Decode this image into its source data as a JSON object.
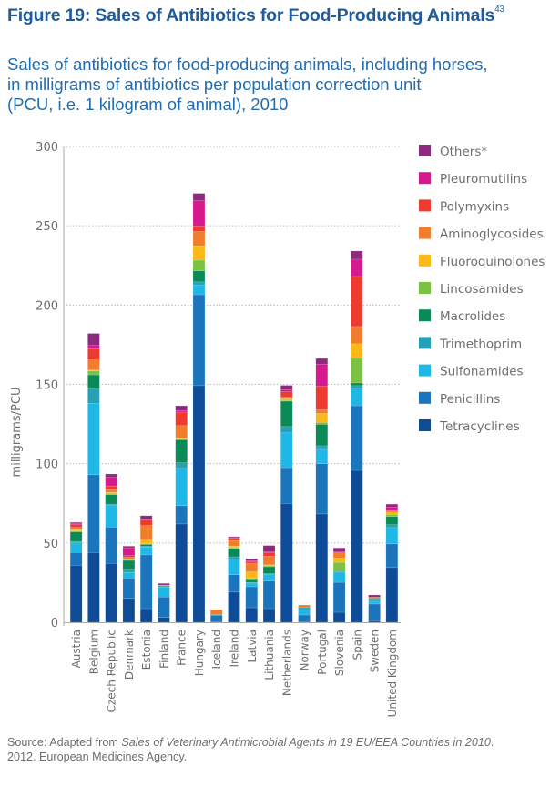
{
  "figure": {
    "title": "Figure 19: Sales of Antibiotics for Food-Producing Animals",
    "title_superscript": "43",
    "subtitle_lines": [
      "Sales of antibiotics for food-producing animals, including horses,",
      "in milligrams of antibiotics per population correction unit",
      "(PCU, i.e. 1 kilogram of animal), 2010"
    ],
    "source_prefix": "Source: Adapted from ",
    "source_italic": "Sales of Veterinary Antimicrobial Agents in 19 EU/EEA Countries in 2010",
    "source_suffix": ".",
    "source_line2": "2012. European Medicines Agency."
  },
  "chart_data": {
    "type": "bar",
    "stacked": true,
    "title": "Sales of antibiotics for food-producing animals, including horses, in milligrams of antibiotics per population correction unit (PCU, i.e. 1 kilogram of animal), 2010",
    "xlabel": "",
    "ylabel": "milligrams/PCU",
    "ylim": [
      0,
      300
    ],
    "yticks": [
      0,
      50,
      100,
      150,
      200,
      250,
      300
    ],
    "grid": "horizontal-dotted",
    "legend_position": "right",
    "categories": [
      "Austria",
      "Belgium",
      "Czech Republic",
      "Denmark",
      "Estonia",
      "Finland",
      "France",
      "Hungary",
      "Iceland",
      "Ireland",
      "Latvia",
      "Lithuania",
      "Netherlands",
      "Norway",
      "Portugal",
      "Slovenia",
      "Spain",
      "Sweden",
      "United Kingdom"
    ],
    "series": [
      {
        "name": "Tetracyclines",
        "color": "#0f4c97",
        "values": [
          36.0,
          44.0,
          37.0,
          15.0,
          8.6,
          3.0,
          62.0,
          149.2,
          0.5,
          19.0,
          9.2,
          8.6,
          75.0,
          0.3,
          68.3,
          6.3,
          95.8,
          1.0,
          34.5
        ]
      },
      {
        "name": "Penicillins",
        "color": "#1b75bc",
        "values": [
          8.0,
          49.0,
          23.0,
          12.5,
          33.9,
          13.0,
          11.5,
          57.3,
          4.0,
          11.0,
          13.2,
          17.4,
          22.5,
          4.3,
          31.7,
          18.9,
          40.7,
          10.5,
          14.9
        ]
      },
      {
        "name": "Sulfonamides",
        "color": "#1fb7e6",
        "values": [
          6.0,
          45.0,
          13.5,
          4.0,
          5.0,
          6.0,
          23.5,
          6.3,
          0.5,
          10.0,
          2.3,
          4.0,
          21.9,
          3.4,
          9.0,
          6.4,
          11.0,
          1.7,
          10.3
        ]
      },
      {
        "name": "Trimethoprim",
        "color": "#25a0b4",
        "values": [
          1.0,
          9.0,
          1.0,
          1.5,
          0.6,
          0.5,
          3.5,
          1.8,
          0,
          1.3,
          0.5,
          0.6,
          4.0,
          1.2,
          2.3,
          0.5,
          1.7,
          1.7,
          1.8
        ]
      },
      {
        "name": "Macrolides",
        "color": "#0a8a57",
        "values": [
          6.0,
          9.0,
          6.0,
          6.0,
          1.0,
          0.5,
          14.5,
          7.0,
          0,
          5.3,
          1.5,
          4.4,
          16.0,
          0,
          13.5,
          0.5,
          1.7,
          0,
          5.2
        ]
      },
      {
        "name": "Lincosamides",
        "color": "#7cc242",
        "values": [
          0.5,
          2.5,
          0.7,
          0.5,
          0.4,
          0,
          0.5,
          6.7,
          0,
          0.5,
          1.0,
          0.7,
          0.5,
          0,
          1.1,
          5.2,
          15.5,
          0,
          1.3
        ]
      },
      {
        "name": "Fluoroquinolones",
        "color": "#fbb817",
        "values": [
          0.8,
          0.5,
          0.8,
          0.5,
          2.3,
          0,
          0.5,
          9.1,
          0,
          1.0,
          4.1,
          0.5,
          1.0,
          0,
          5.8,
          2.8,
          9.2,
          0,
          1.0
        ]
      },
      {
        "name": "Aminoglycosides",
        "color": "#ef7d2d",
        "values": [
          1.5,
          6.5,
          1.5,
          1.0,
          9.2,
          0.5,
          8.0,
          9.0,
          3.0,
          3.5,
          5.4,
          5.6,
          1.1,
          1.7,
          2.3,
          3.3,
          10.9,
          1.0,
          1.0
        ]
      },
      {
        "name": "Polymyxins",
        "color": "#ee3a2f",
        "values": [
          1.7,
          7.0,
          2.5,
          1.0,
          3.4,
          0,
          8.5,
          3.5,
          0,
          1.3,
          1.2,
          2.0,
          3.4,
          0,
          14.9,
          0,
          31.5,
          0,
          0.5
        ]
      },
      {
        "name": "Pleuromutilins",
        "color": "#d6198f",
        "values": [
          0.8,
          2.0,
          5.5,
          5.0,
          0.5,
          0,
          1.0,
          16.0,
          0,
          0.5,
          0.4,
          0.6,
          1.3,
          0,
          13.8,
          0.5,
          10.9,
          0,
          2.0
        ]
      },
      {
        "name": "Others*",
        "color": "#8e2a7e",
        "values": [
          0.7,
          7.6,
          2.0,
          1.0,
          2.3,
          1.0,
          3.0,
          4.5,
          0,
          0.6,
          1.2,
          4.0,
          2.7,
          0,
          3.6,
          2.5,
          5.2,
          1.3,
          2.0
        ]
      }
    ],
    "legend_order": [
      "Others*",
      "Pleuromutilins",
      "Polymyxins",
      "Aminoglycosides",
      "Fluoroquinolones",
      "Lincosamides",
      "Macrolides",
      "Trimethoprim",
      "Sulfonamides",
      "Penicillins",
      "Tetracyclines"
    ]
  }
}
